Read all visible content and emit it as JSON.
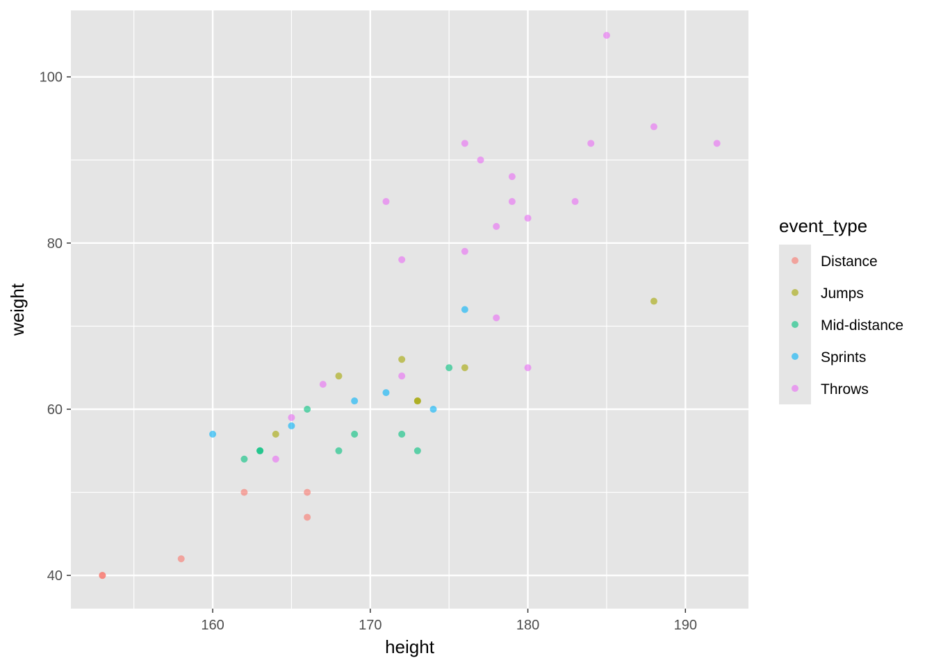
{
  "chart_data": {
    "type": "scatter",
    "xlabel": "height",
    "ylabel": "weight",
    "xlim": [
      151,
      194
    ],
    "ylim": [
      36,
      108
    ],
    "x_ticks": [
      160,
      170,
      180,
      190
    ],
    "y_ticks": [
      40,
      60,
      80,
      100
    ],
    "x_tick_labels": [
      "160",
      "170",
      "180",
      "190"
    ],
    "y_tick_labels": [
      "40",
      "60",
      "80",
      "100"
    ],
    "grid": true,
    "background": "#e5e5e5",
    "point_opacity": 0.6,
    "legend": {
      "title": "event_type",
      "placement": "right"
    },
    "series": [
      {
        "name": "Distance",
        "color": "#F8766D",
        "points": [
          [
            153,
            40
          ],
          [
            153,
            40
          ],
          [
            158,
            42
          ],
          [
            162,
            50
          ],
          [
            166,
            50
          ],
          [
            166,
            47
          ]
        ]
      },
      {
        "name": "Jumps",
        "color": "#A3A500",
        "points": [
          [
            164,
            57
          ],
          [
            168,
            64
          ],
          [
            172,
            66
          ],
          [
            173,
            61
          ],
          [
            173,
            61
          ],
          [
            176,
            65
          ],
          [
            188,
            73
          ]
        ]
      },
      {
        "name": "Mid-distance",
        "color": "#00BF7D",
        "points": [
          [
            162,
            54
          ],
          [
            163,
            55
          ],
          [
            163,
            55
          ],
          [
            166,
            60
          ],
          [
            168,
            55
          ],
          [
            169,
            57
          ],
          [
            172,
            57
          ],
          [
            173,
            55
          ],
          [
            175,
            65
          ]
        ]
      },
      {
        "name": "Sprints",
        "color": "#00B0F6",
        "points": [
          [
            160,
            57
          ],
          [
            165,
            58
          ],
          [
            169,
            61
          ],
          [
            171,
            62
          ],
          [
            174,
            60
          ],
          [
            176,
            72
          ]
        ]
      },
      {
        "name": "Throws",
        "color": "#E76BF3",
        "points": [
          [
            164,
            54
          ],
          [
            165,
            59
          ],
          [
            167,
            63
          ],
          [
            171,
            85
          ],
          [
            172,
            78
          ],
          [
            172,
            64
          ],
          [
            176,
            92
          ],
          [
            176,
            79
          ],
          [
            177,
            90
          ],
          [
            178,
            82
          ],
          [
            178,
            71
          ],
          [
            179,
            88
          ],
          [
            179,
            85
          ],
          [
            180,
            83
          ],
          [
            180,
            65
          ],
          [
            183,
            85
          ],
          [
            184,
            92
          ],
          [
            185,
            105
          ],
          [
            188,
            94
          ],
          [
            192,
            92
          ]
        ]
      }
    ]
  }
}
